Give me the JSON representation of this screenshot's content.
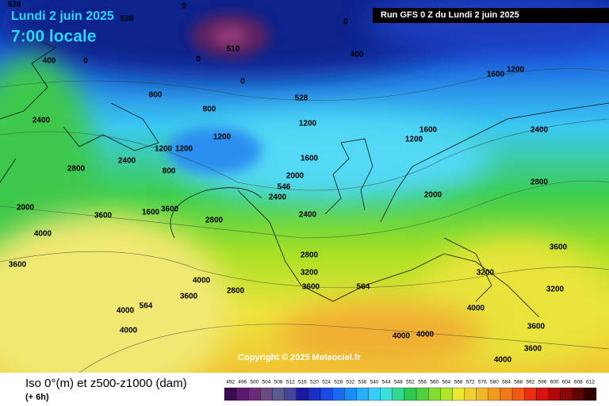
{
  "header": {
    "date": "Lundi 2 juin 2025",
    "time": "7:00 locale",
    "run": "Run GFS 0 Z du Lundi 2 juin 2025"
  },
  "copyright": "Copyright © 2025 Meteociel.fr",
  "footer": {
    "title": "Iso 0°(m) et z500-z1000 (dam)",
    "lead": "(+ 6h)"
  },
  "contour_labels": [
    "0",
    "0",
    "0",
    "0",
    "0",
    "528",
    "528",
    "528",
    "510",
    "400",
    "400",
    "800",
    "800",
    "800",
    "1200",
    "1200",
    "1200",
    "1200",
    "1200",
    "1200",
    "1600",
    "1600",
    "1600",
    "1600",
    "2000",
    "2000",
    "2000",
    "2400",
    "2400",
    "2400",
    "2400",
    "2400",
    "2800",
    "2800",
    "2800",
    "2800",
    "2800",
    "3200",
    "3200",
    "3200",
    "3600",
    "3600",
    "3600",
    "3600",
    "3600",
    "3600",
    "3600",
    "3600",
    "4000",
    "4000",
    "4000",
    "4000",
    "4000",
    "4000",
    "4000",
    "4000",
    "564",
    "564",
    "546"
  ],
  "legend": {
    "labels": [
      "492",
      "496",
      "500",
      "504",
      "508",
      "512",
      "516",
      "520",
      "524",
      "528",
      "532",
      "536",
      "540",
      "544",
      "548",
      "552",
      "556",
      "560",
      "564",
      "568",
      "572",
      "576",
      "580",
      "584",
      "588",
      "592",
      "596",
      "600",
      "604",
      "608",
      "612"
    ],
    "colors": [
      "#3c0a50",
      "#5a1a6e",
      "#6e2a7a",
      "#6a4a82",
      "#5a5a90",
      "#44449a",
      "#1a1aa0",
      "#1a2ec8",
      "#1a4ae0",
      "#1a6af0",
      "#1a8cf5",
      "#28aef8",
      "#38ccf8",
      "#3ae0d8",
      "#30d890",
      "#30c850",
      "#50d040",
      "#80dc30",
      "#b0e428",
      "#e8e830",
      "#f0d030",
      "#f0b828",
      "#f09a20",
      "#f07818",
      "#f05a14",
      "#e83010",
      "#d81010",
      "#b00808",
      "#880808",
      "#600404",
      "#300000"
    ]
  }
}
